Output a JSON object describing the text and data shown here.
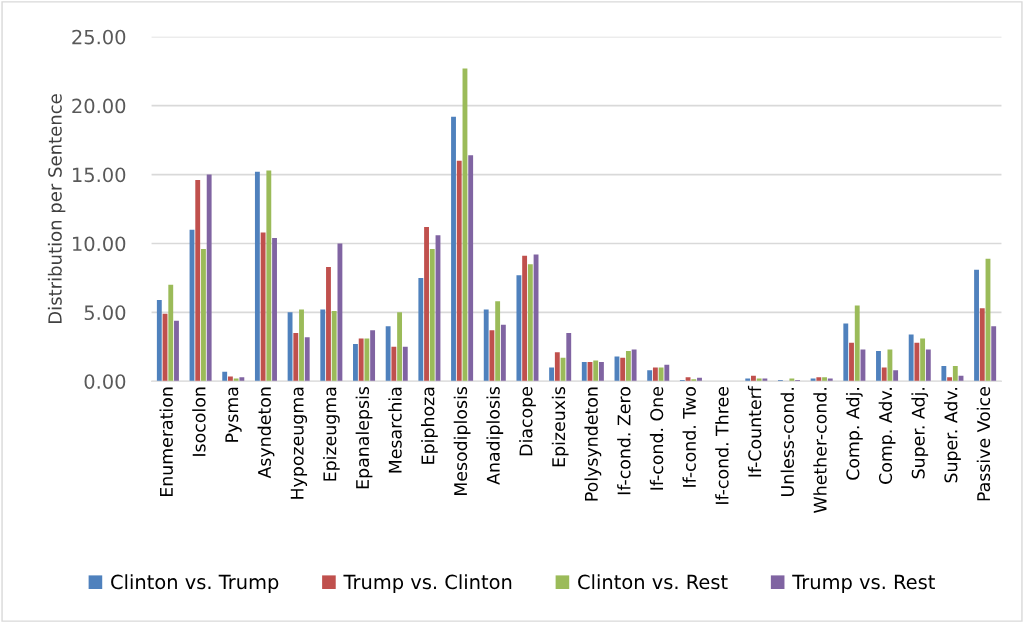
{
  "chart_data": {
    "type": "bar",
    "ylabel": "Distribution per Sentence",
    "categories": [
      "Enumeration",
      "Isocolon",
      "Pysma",
      "Asyndeton",
      "Hypozeugma",
      "Epizeugma",
      "Epanalepsis",
      "Mesarchia",
      "Epiphoza",
      "Mesodiplosis",
      "Anadiplosis",
      "Diacope",
      "Epizeuxis",
      "Polysyndeton",
      "If-cond. Zero",
      "If-cond. One",
      "If-cond. Two",
      "If-cond. Three",
      "If-Counterf",
      "Unless-cond.",
      "Whether-cond.",
      "Comp. Adj.",
      "Comp. Adv.",
      "Super. Adj.",
      "Super. Adv.",
      "Passive Voice"
    ],
    "series": [
      {
        "name": "Clinton vs. Trump",
        "color": "#4f81bd",
        "values": [
          5.9,
          11.0,
          0.7,
          15.2,
          5.0,
          5.2,
          2.7,
          4.0,
          7.5,
          19.2,
          5.2,
          7.7,
          1.0,
          1.4,
          1.8,
          0.8,
          0.1,
          null,
          0.2,
          0.1,
          0.2,
          4.2,
          2.2,
          3.4,
          1.1,
          8.1
        ]
      },
      {
        "name": "Trump vs. Clinton",
        "color": "#c0504d",
        "values": [
          4.9,
          14.6,
          0.35,
          10.8,
          3.5,
          8.3,
          3.1,
          2.5,
          11.2,
          16.0,
          3.7,
          9.1,
          2.1,
          1.4,
          1.7,
          1.0,
          0.3,
          null,
          0.4,
          null,
          0.3,
          2.8,
          1.0,
          2.8,
          0.3,
          5.3
        ]
      },
      {
        "name": "Clinton vs. Rest",
        "color": "#9bbb59",
        "values": [
          7.0,
          9.6,
          0.2,
          15.3,
          5.2,
          5.1,
          3.1,
          5.0,
          9.6,
          22.7,
          5.8,
          8.5,
          1.7,
          1.5,
          2.2,
          1.0,
          0.15,
          null,
          0.2,
          0.2,
          0.3,
          5.5,
          2.3,
          3.1,
          1.1,
          8.9
        ]
      },
      {
        "name": "Trump vs. Rest",
        "color": "#8064a2",
        "values": [
          4.4,
          15.0,
          0.3,
          10.4,
          3.2,
          10.0,
          3.7,
          2.5,
          10.6,
          16.4,
          4.1,
          9.2,
          3.5,
          1.4,
          2.3,
          1.2,
          0.25,
          null,
          0.2,
          0.1,
          0.2,
          2.3,
          0.8,
          2.3,
          0.4,
          4.0
        ]
      }
    ],
    "ylim": [
      0,
      25
    ],
    "yticks": [
      {
        "value": 0,
        "label": "0.00"
      },
      {
        "value": 5,
        "label": "5.00"
      },
      {
        "value": 10,
        "label": "10.00"
      },
      {
        "value": 15,
        "label": "15.00"
      },
      {
        "value": 20,
        "label": "20.00"
      },
      {
        "value": 25,
        "label": "25.00"
      }
    ],
    "grid": "y",
    "legend": "bottom"
  }
}
